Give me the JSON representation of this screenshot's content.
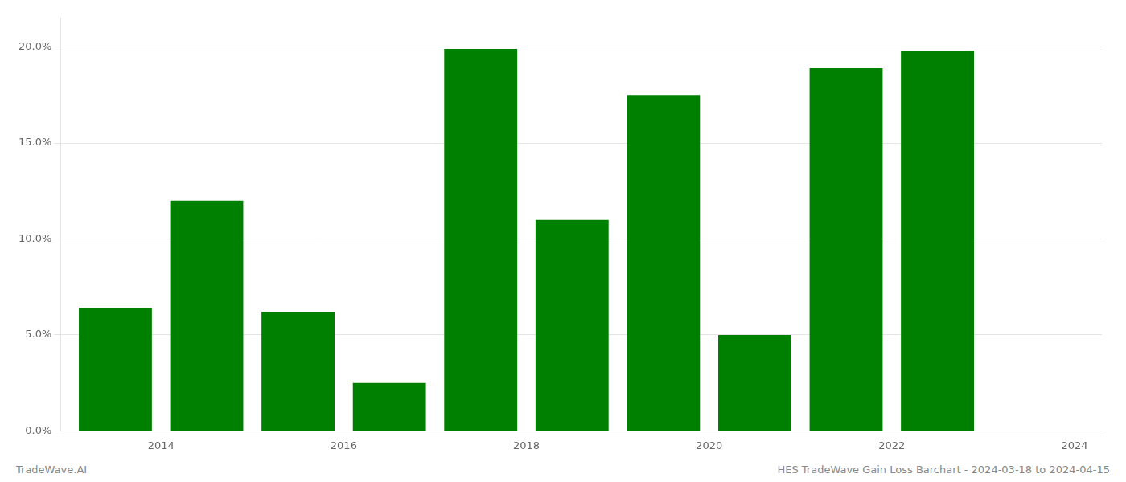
{
  "chart_data": {
    "type": "bar",
    "x": [
      2014,
      2015,
      2016,
      2017,
      2018,
      2019,
      2020,
      2021,
      2022,
      2023
    ],
    "values": [
      0.064,
      0.12,
      0.062,
      0.025,
      0.199,
      0.11,
      0.175,
      0.05,
      0.189,
      0.198
    ],
    "color": "#008000",
    "xlim": [
      2013.4,
      2024.8
    ],
    "xticks": [
      {
        "value": 2014.5,
        "label": "2014"
      },
      {
        "value": 2016.5,
        "label": "2016"
      },
      {
        "value": 2018.5,
        "label": "2018"
      },
      {
        "value": 2020.5,
        "label": "2020"
      },
      {
        "value": 2022.5,
        "label": "2022"
      },
      {
        "value": 2024.5,
        "label": "2024"
      }
    ],
    "ylim": [
      0,
      0.215
    ],
    "yticks": [
      {
        "value": 0,
        "label": "0.0%"
      },
      {
        "value": 0.05,
        "label": "5.0%"
      },
      {
        "value": 0.1,
        "label": "10.0%"
      },
      {
        "value": 0.15,
        "label": "15.0%"
      },
      {
        "value": 0.2,
        "label": "20.0%"
      }
    ],
    "grid": true,
    "annotations": [
      "TradeWave.AI",
      "HES TradeWave Gain Loss Barchart - 2024-03-18 to 2024-04-15"
    ]
  }
}
